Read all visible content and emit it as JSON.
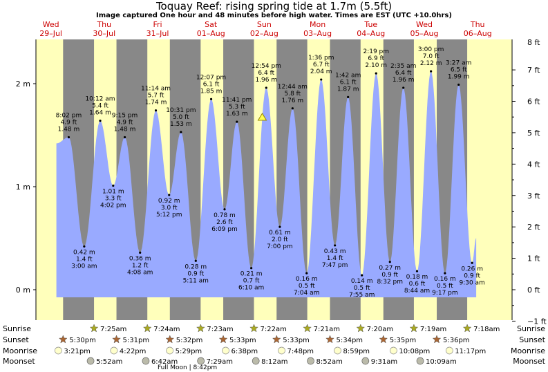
{
  "title": "Toquay Reef: rising  spring tide at 1.7m (5.5ft)",
  "subtitle": "Image captured One hour and 48 minutes before high water. Times are EST (UTC +10.0hrs)",
  "colors": {
    "day": "#ffffbb",
    "night": "#888888",
    "water": "#99aaff",
    "day_label": "#cc0000",
    "sun_icon": "#aaaa22",
    "sunset_icon": "#aa6633",
    "moonrise_icon": "#ffffcc",
    "moonset_icon": "#bbbbaa"
  },
  "chart_data": {
    "type": "area",
    "title": "Toquay Reef: rising  spring tide at 1.7m (5.5ft)",
    "y_left_unit": "m",
    "y_right_unit": "ft",
    "ylim_m": [
      -0.3,
      2.45
    ],
    "y_left_ticks": [
      "0 m",
      "1 m",
      "2 m"
    ],
    "y_right_ticks": [
      "−1 ft",
      "0 ft",
      "1 ft",
      "2 ft",
      "3 ft",
      "4 ft",
      "5 ft",
      "6 ft",
      "7 ft",
      "8 ft"
    ],
    "days": [
      {
        "name": "Wed",
        "date": "29–Jul"
      },
      {
        "name": "Thu",
        "date": "30–Jul"
      },
      {
        "name": "Fri",
        "date": "31–Jul"
      },
      {
        "name": "Sat",
        "date": "01–Aug"
      },
      {
        "name": "Sun",
        "date": "02–Aug"
      },
      {
        "name": "Mon",
        "date": "03–Aug"
      },
      {
        "name": "Tue",
        "date": "04–Aug"
      },
      {
        "name": "Wed",
        "date": "05–Aug"
      },
      {
        "name": "Thu",
        "date": "06–Aug"
      }
    ],
    "start": {
      "date": "29-Jul",
      "time": "14:30",
      "m": 1.42
    },
    "end": {
      "date": "06-Aug",
      "time": "11:20",
      "m": 0.5
    },
    "tides": [
      {
        "date": "29-Jul",
        "time": "20:02",
        "type": "high",
        "time_label": "8:02 pm",
        "ft": "4.9 ft",
        "m": "1.48 m",
        "value": 1.48
      },
      {
        "date": "30-Jul",
        "time": "03:00",
        "type": "low",
        "time_label": "3:00 am",
        "ft": "1.4 ft",
        "m": "0.42 m",
        "value": 0.42
      },
      {
        "date": "30-Jul",
        "time": "10:12",
        "type": "high",
        "time_label": "10:12 am",
        "ft": "5.4 ft",
        "m": "1.64 m",
        "value": 1.64
      },
      {
        "date": "30-Jul",
        "time": "16:02",
        "type": "low",
        "time_label": "4:02 pm",
        "ft": "3.3 ft",
        "m": "1.01 m",
        "value": 1.01
      },
      {
        "date": "30-Jul",
        "time": "21:15",
        "type": "high",
        "time_label": "9:15 pm",
        "ft": "4.9 ft",
        "m": "1.48 m",
        "value": 1.48
      },
      {
        "date": "31-Jul",
        "time": "04:08",
        "type": "low",
        "time_label": "4:08 am",
        "ft": "1.2 ft",
        "m": "0.36 m",
        "value": 0.36
      },
      {
        "date": "31-Jul",
        "time": "11:14",
        "type": "high",
        "time_label": "11:14 am",
        "ft": "5.7 ft",
        "m": "1.74 m",
        "value": 1.74
      },
      {
        "date": "31-Jul",
        "time": "17:12",
        "type": "low",
        "time_label": "5:12 pm",
        "ft": "3.0 ft",
        "m": "0.92 m",
        "value": 0.92
      },
      {
        "date": "31-Jul",
        "time": "22:31",
        "type": "high",
        "time_label": "10:31 pm",
        "ft": "5.0 ft",
        "m": "1.53 m",
        "value": 1.53
      },
      {
        "date": "01-Aug",
        "time": "05:11",
        "type": "low",
        "time_label": "5:11 am",
        "ft": "0.9 ft",
        "m": "0.28 m",
        "value": 0.28
      },
      {
        "date": "01-Aug",
        "time": "12:07",
        "type": "high",
        "time_label": "12:07 pm",
        "ft": "6.1 ft",
        "m": "1.85 m",
        "value": 1.85
      },
      {
        "date": "01-Aug",
        "time": "18:09",
        "type": "low",
        "time_label": "6:09 pm",
        "ft": "2.6 ft",
        "m": "0.78 m",
        "value": 0.78
      },
      {
        "date": "01-Aug",
        "time": "23:41",
        "type": "high",
        "time_label": "11:41 pm",
        "ft": "5.3 ft",
        "m": "1.63 m",
        "value": 1.63
      },
      {
        "date": "02-Aug",
        "time": "06:10",
        "type": "low",
        "time_label": "6:10 am",
        "ft": "0.7 ft",
        "m": "0.21 m",
        "value": 0.21
      },
      {
        "date": "02-Aug",
        "time": "12:54",
        "type": "high",
        "time_label": "12:54 pm",
        "ft": "6.4 ft",
        "m": "1.96 m",
        "value": 1.96
      },
      {
        "date": "02-Aug",
        "time": "19:00",
        "type": "low",
        "time_label": "7:00 pm",
        "ft": "2.0 ft",
        "m": "0.61 m",
        "value": 0.61
      },
      {
        "date": "03-Aug",
        "time": "00:44",
        "type": "high",
        "time_label": "12:44 am",
        "ft": "5.8 ft",
        "m": "1.76 m",
        "value": 1.76
      },
      {
        "date": "03-Aug",
        "time": "07:04",
        "type": "low",
        "time_label": "7:04 am",
        "ft": "0.5 ft",
        "m": "0.16 m",
        "value": 0.16
      },
      {
        "date": "03-Aug",
        "time": "13:36",
        "type": "high",
        "time_label": "1:36 pm",
        "ft": "6.7 ft",
        "m": "2.04 m",
        "value": 2.04
      },
      {
        "date": "03-Aug",
        "time": "19:47",
        "type": "low",
        "time_label": "7:47 pm",
        "ft": "1.4 ft",
        "m": "0.43 m",
        "value": 0.43
      },
      {
        "date": "04-Aug",
        "time": "01:42",
        "type": "high",
        "time_label": "1:42 am",
        "ft": "6.1 ft",
        "m": "1.87 m",
        "value": 1.87
      },
      {
        "date": "04-Aug",
        "time": "07:55",
        "type": "low",
        "time_label": "7:55 am",
        "ft": "0.5 ft",
        "m": "0.14 m",
        "value": 0.14
      },
      {
        "date": "04-Aug",
        "time": "14:19",
        "type": "high",
        "time_label": "2:19 pm",
        "ft": "6.9 ft",
        "m": "2.10 m",
        "value": 2.1
      },
      {
        "date": "04-Aug",
        "time": "20:32",
        "type": "low",
        "time_label": "8:32 pm",
        "ft": "0.9 ft",
        "m": "0.27 m",
        "value": 0.27
      },
      {
        "date": "05-Aug",
        "time": "02:35",
        "type": "high",
        "time_label": "2:35 am",
        "ft": "6.4 ft",
        "m": "1.96 m",
        "value": 1.96
      },
      {
        "date": "05-Aug",
        "time": "08:44",
        "type": "low",
        "time_label": "8:44 am",
        "ft": "0.6 ft",
        "m": "0.18 m",
        "value": 0.18
      },
      {
        "date": "05-Aug",
        "time": "15:00",
        "type": "high",
        "time_label": "3:00 pm",
        "ft": "7.0 ft",
        "m": "2.12 m",
        "value": 2.12
      },
      {
        "date": "05-Aug",
        "time": "21:17",
        "type": "low",
        "time_label": "9:17 pm",
        "ft": "0.5 ft",
        "m": "0.16 m",
        "value": 0.16
      },
      {
        "date": "06-Aug",
        "time": "03:27",
        "type": "high",
        "time_label": "3:27 am",
        "ft": "6.5 ft",
        "m": "1.99 m",
        "value": 1.99
      },
      {
        "date": "06-Aug",
        "time": "09:30",
        "type": "low",
        "time_label": "9:30 am",
        "ft": "0.9 ft",
        "m": "0.26 m",
        "value": 0.26
      }
    ],
    "sunrise": [
      {
        "date": "30-Jul",
        "time": "07:25",
        "label": "7:25am"
      },
      {
        "date": "31-Jul",
        "time": "07:24",
        "label": "7:24am"
      },
      {
        "date": "01-Aug",
        "time": "07:23",
        "label": "7:23am"
      },
      {
        "date": "02-Aug",
        "time": "07:22",
        "label": "7:22am"
      },
      {
        "date": "03-Aug",
        "time": "07:21",
        "label": "7:21am"
      },
      {
        "date": "04-Aug",
        "time": "07:20",
        "label": "7:20am"
      },
      {
        "date": "05-Aug",
        "time": "07:19",
        "label": "7:19am"
      },
      {
        "date": "06-Aug",
        "time": "07:18",
        "label": "7:18am"
      }
    ],
    "sunset": [
      {
        "date": "29-Jul",
        "time": "17:30",
        "label": "5:30pm"
      },
      {
        "date": "30-Jul",
        "time": "17:31",
        "label": "5:31pm"
      },
      {
        "date": "31-Jul",
        "time": "17:32",
        "label": "5:32pm"
      },
      {
        "date": "01-Aug",
        "time": "17:33",
        "label": "5:33pm"
      },
      {
        "date": "02-Aug",
        "time": "17:33",
        "label": "5:33pm"
      },
      {
        "date": "03-Aug",
        "time": "17:34",
        "label": "5:34pm"
      },
      {
        "date": "04-Aug",
        "time": "17:35",
        "label": "5:35pm"
      },
      {
        "date": "05-Aug",
        "time": "17:36",
        "label": "5:36pm"
      }
    ],
    "moonrise": [
      {
        "date": "29-Jul",
        "time": "15:21",
        "label": "3:21pm"
      },
      {
        "date": "30-Jul",
        "time": "16:22",
        "label": "4:22pm"
      },
      {
        "date": "31-Jul",
        "time": "17:29",
        "label": "5:29pm"
      },
      {
        "date": "01-Aug",
        "time": "18:38",
        "label": "6:38pm"
      },
      {
        "date": "02-Aug",
        "time": "19:48",
        "label": "7:48pm"
      },
      {
        "date": "03-Aug",
        "time": "20:59",
        "label": "8:59pm"
      },
      {
        "date": "04-Aug",
        "time": "22:08",
        "label": "10:08pm"
      },
      {
        "date": "05-Aug",
        "time": "23:17",
        "label": "11:17pm"
      }
    ],
    "moonset": [
      {
        "date": "30-Jul",
        "time": "05:52",
        "label": "5:52am"
      },
      {
        "date": "31-Jul",
        "time": "06:42",
        "label": "6:42am"
      },
      {
        "date": "01-Aug",
        "time": "07:29",
        "label": "7:29am"
      },
      {
        "date": "02-Aug",
        "time": "08:12",
        "label": "8:12am"
      },
      {
        "date": "03-Aug",
        "time": "08:52",
        "label": "8:52am"
      },
      {
        "date": "04-Aug",
        "time": "09:31",
        "label": "9:31am"
      },
      {
        "date": "05-Aug",
        "time": "10:09",
        "label": "10:09am"
      }
    ],
    "row_labels": [
      "Sunrise",
      "Sunset",
      "Moonrise",
      "Moonset"
    ],
    "full_moon": "Full Moon | 8:42pm",
    "current_marker": {
      "date": "02-Aug",
      "time": "11:06"
    }
  }
}
